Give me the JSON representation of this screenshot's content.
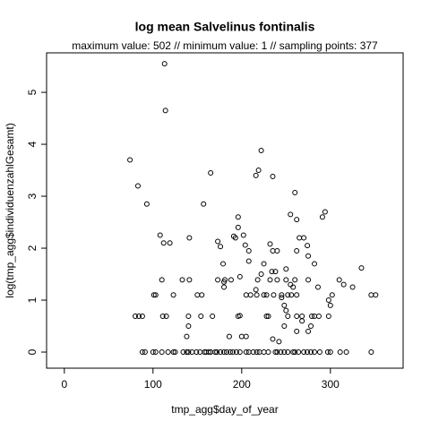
{
  "chart_data": {
    "type": "scatter",
    "title": "log mean Salvelinus fontinalis",
    "subtitle": "maximum value: 502  //  minimum value: 1  // sampling points: 377",
    "xlabel": "tmp_agg$day_of_year",
    "ylabel": "log(tmp_agg$individuenzahlGesamt)",
    "color": "#000000",
    "xlim": [
      -20,
      382
    ],
    "xticks": [
      0,
      100,
      200,
      300
    ],
    "ylim": [
      -0.31,
      5.76
    ],
    "yticks": [
      0,
      1,
      2,
      3,
      4,
      5
    ],
    "grid": false,
    "x": [
      88,
      91,
      100,
      103,
      110,
      117,
      123,
      125,
      134,
      138,
      140,
      144,
      149,
      153,
      158,
      160,
      163,
      165,
      170,
      172,
      176,
      180,
      183,
      187,
      190,
      194,
      198,
      205,
      208,
      213,
      217,
      220,
      225,
      230,
      238,
      240,
      244,
      248,
      252,
      258,
      260,
      264,
      270,
      274,
      278,
      282,
      288,
      297,
      300,
      311,
      318,
      346,
      80,
      84,
      88,
      111,
      115,
      140,
      154,
      167,
      196,
      228,
      230,
      252,
      262,
      268,
      279,
      282,
      287,
      298,
      101,
      123,
      150,
      155,
      205,
      210,
      217,
      225,
      228,
      236,
      245,
      256,
      262,
      302,
      346,
      351,
      110,
      133,
      141,
      173,
      181,
      188,
      218,
      232,
      240,
      250,
      260,
      275,
      310,
      74,
      83,
      93,
      108,
      112,
      119,
      141,
      157,
      165,
      113,
      114,
      173,
      176,
      179,
      180,
      180,
      191,
      193,
      196,
      196,
      202,
      204,
      208,
      216,
      219,
      222,
      235,
      260,
      255,
      262,
      270,
      274,
      265,
      291,
      294,
      286,
      298,
      300,
      240,
      232,
      235,
      234,
      238,
      250,
      255,
      258,
      262,
      250,
      248,
      262,
      275,
      278,
      242,
      235,
      200,
      205,
      138,
      140,
      186,
      198,
      198,
      208,
      216,
      222,
      225,
      245,
      248,
      252,
      268,
      275,
      282,
      335,
      315,
      325,
      103
    ],
    "values": [
      0,
      0,
      0,
      0,
      0,
      0,
      0,
      0,
      0,
      0,
      0,
      0,
      0,
      0,
      0,
      0,
      0,
      0,
      0,
      0,
      0,
      0,
      0,
      0,
      0,
      0,
      0,
      0,
      0,
      0,
      0,
      0,
      0,
      0,
      0,
      0,
      0,
      0,
      0,
      0,
      0,
      0,
      0,
      0,
      0,
      0,
      0,
      0,
      0,
      0,
      0,
      0,
      0.69,
      0.69,
      0.69,
      0.69,
      0.69,
      0.69,
      0.69,
      0.69,
      0.69,
      0.69,
      0.69,
      0.69,
      0.69,
      0.69,
      0.69,
      0.69,
      0.69,
      0.69,
      1.1,
      1.1,
      1.1,
      1.1,
      1.1,
      1.1,
      1.1,
      1.1,
      1.1,
      1.1,
      1.1,
      1.1,
      1.1,
      1.1,
      1.1,
      1.1,
      1.39,
      1.39,
      1.39,
      1.39,
      1.39,
      1.39,
      1.39,
      1.39,
      1.39,
      1.39,
      1.39,
      1.39,
      1.39,
      3.7,
      3.2,
      2.85,
      2.25,
      2.1,
      2.1,
      2.2,
      2.85,
      3.45,
      5.55,
      4.65,
      2.13,
      2.03,
      1.7,
      1.35,
      1.25,
      2.23,
      2.2,
      2.4,
      2.6,
      2.25,
      2.06,
      1.95,
      3.4,
      3.5,
      3.88,
      3.38,
      3.07,
      2.65,
      2.55,
      2.2,
      2.05,
      2.2,
      2.6,
      2.7,
      1.25,
      1.0,
      0.9,
      1.95,
      2.08,
      1.95,
      1.55,
      1.55,
      1.6,
      1.3,
      1.25,
      1.95,
      0.8,
      0.5,
      0.4,
      0.4,
      0.5,
      0.2,
      0.25,
      0.3,
      0.3,
      0.3,
      0.5,
      0.3,
      0.7,
      1.45,
      1.75,
      1.2,
      1.5,
      1.7,
      1.05,
      0.9,
      1.1,
      0.6,
      1.85,
      1.7,
      1.62,
      1.3,
      1.25,
      1.1
    ]
  }
}
